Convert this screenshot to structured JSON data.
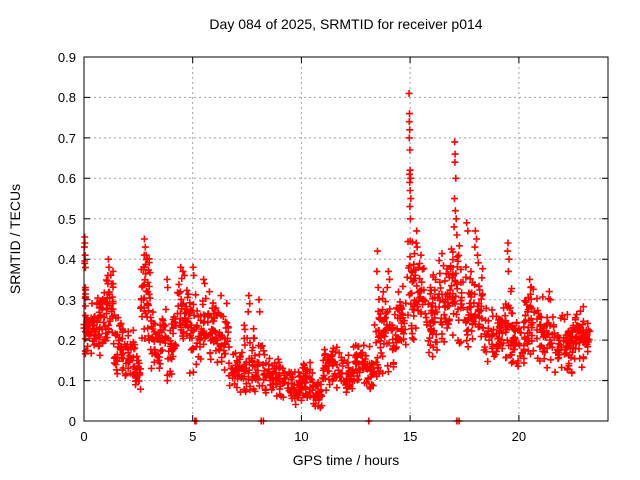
{
  "chart_data": {
    "type": "scatter",
    "title": "Day 084 of 2025, SRMTID for receiver p014",
    "xlabel": "GPS time / hours",
    "ylabel": "SRMTID / TECUs",
    "xlim": [
      0,
      24.1
    ],
    "ylim": [
      0,
      0.9
    ],
    "xticks": [
      0,
      5,
      10,
      15,
      20
    ],
    "xtick_labels": [
      "0",
      "5",
      "10",
      "15",
      "20"
    ],
    "yticks": [
      0,
      0.1,
      0.2,
      0.3,
      0.4,
      0.5,
      0.6,
      0.7,
      0.8,
      0.9
    ],
    "ytick_labels": [
      "0",
      "0.1",
      "0.2",
      "0.3",
      "0.4",
      "0.5",
      "0.6",
      "0.7",
      "0.8",
      "0.9"
    ],
    "grid": true,
    "grid_color": "#a0a0a0",
    "marker": {
      "shape": "plus",
      "color": "#ff0000",
      "size": 7
    },
    "series_name": "SRMTID",
    "notable_points": [
      [
        0.03,
        0.455
      ],
      [
        0.04,
        0.44
      ],
      [
        0.02,
        0.43
      ],
      [
        0.05,
        0.41
      ],
      [
        0.03,
        0.39
      ],
      [
        1.12,
        0.4
      ],
      [
        1.15,
        0.38
      ],
      [
        1.1,
        0.36
      ],
      [
        2.78,
        0.45
      ],
      [
        2.82,
        0.43
      ],
      [
        2.86,
        0.41
      ],
      [
        2.9,
        0.4
      ],
      [
        2.75,
        0.38
      ],
      [
        3.82,
        0.35
      ],
      [
        3.85,
        0.33
      ],
      [
        4.45,
        0.38
      ],
      [
        4.55,
        0.37
      ],
      [
        4.62,
        0.36
      ],
      [
        5.02,
        0.38
      ],
      [
        5.05,
        0.36
      ],
      [
        5.5,
        0.35
      ],
      [
        5.55,
        0.34
      ],
      [
        6.3,
        0.31
      ],
      [
        7.58,
        0.31
      ],
      [
        7.62,
        0.29
      ],
      [
        7.55,
        0.27
      ],
      [
        8.05,
        0.3
      ],
      [
        8.08,
        0.27
      ],
      [
        13.5,
        0.42
      ],
      [
        13.47,
        0.37
      ],
      [
        13.53,
        0.33
      ],
      [
        14.0,
        0.37
      ],
      [
        14.05,
        0.35
      ],
      [
        13.95,
        0.33
      ],
      [
        14.95,
        0.81
      ],
      [
        14.97,
        0.76
      ],
      [
        14.96,
        0.74
      ],
      [
        14.98,
        0.72
      ],
      [
        14.96,
        0.7
      ],
      [
        14.99,
        0.67
      ],
      [
        15.0,
        0.62
      ],
      [
        14.97,
        0.61
      ],
      [
        15.02,
        0.6
      ],
      [
        14.98,
        0.59
      ],
      [
        15.0,
        0.57
      ],
      [
        15.03,
        0.55
      ],
      [
        14.99,
        0.53
      ],
      [
        15.01,
        0.5
      ],
      [
        15.3,
        0.47
      ],
      [
        15.28,
        0.44
      ],
      [
        15.32,
        0.43
      ],
      [
        15.5,
        0.41
      ],
      [
        17.05,
        0.69
      ],
      [
        17.07,
        0.66
      ],
      [
        17.06,
        0.64
      ],
      [
        17.1,
        0.6
      ],
      [
        17.04,
        0.55
      ],
      [
        17.08,
        0.52
      ],
      [
        17.12,
        0.5
      ],
      [
        17.02,
        0.48
      ],
      [
        17.15,
        0.46
      ],
      [
        17.6,
        0.49
      ],
      [
        17.65,
        0.47
      ],
      [
        18.0,
        0.47
      ],
      [
        18.05,
        0.45
      ],
      [
        17.98,
        0.43
      ],
      [
        18.1,
        0.41
      ],
      [
        19.5,
        0.44
      ],
      [
        19.48,
        0.42
      ],
      [
        19.55,
        0.4
      ],
      [
        19.52,
        0.37
      ],
      [
        20.5,
        0.35
      ],
      [
        20.55,
        0.33
      ],
      [
        21.4,
        0.32
      ],
      [
        21.45,
        0.3
      ]
    ],
    "zero_points": [
      5.1,
      5.15,
      8.15,
      8.25,
      13.1,
      17.15,
      17.25
    ],
    "density_bands": [
      {
        "h0": 0.0,
        "h1": 0.08,
        "lo": 0.1,
        "hi": 0.46,
        "n": 14
      },
      {
        "h0": 0.05,
        "h1": 0.5,
        "lo": 0.16,
        "hi": 0.31,
        "n": 40
      },
      {
        "h0": 0.5,
        "h1": 1.0,
        "lo": 0.14,
        "hi": 0.33,
        "n": 45
      },
      {
        "h0": 1.0,
        "h1": 1.35,
        "lo": 0.18,
        "hi": 0.38,
        "n": 35
      },
      {
        "h0": 1.35,
        "h1": 1.8,
        "lo": 0.11,
        "hi": 0.28,
        "n": 40
      },
      {
        "h0": 1.8,
        "h1": 2.3,
        "lo": 0.09,
        "hi": 0.24,
        "n": 35
      },
      {
        "h0": 2.3,
        "h1": 2.6,
        "lo": 0.07,
        "hi": 0.2,
        "n": 25
      },
      {
        "h0": 2.6,
        "h1": 3.1,
        "lo": 0.16,
        "hi": 0.42,
        "n": 45
      },
      {
        "h0": 3.1,
        "h1": 3.65,
        "lo": 0.11,
        "hi": 0.3,
        "n": 40
      },
      {
        "h0": 3.65,
        "h1": 4.2,
        "lo": 0.08,
        "hi": 0.3,
        "n": 35
      },
      {
        "h0": 4.2,
        "h1": 4.85,
        "lo": 0.17,
        "hi": 0.36,
        "n": 45
      },
      {
        "h0": 4.85,
        "h1": 5.35,
        "lo": 0.08,
        "hi": 0.35,
        "n": 35
      },
      {
        "h0": 5.35,
        "h1": 6.05,
        "lo": 0.14,
        "hi": 0.33,
        "n": 50
      },
      {
        "h0": 6.05,
        "h1": 6.65,
        "lo": 0.11,
        "hi": 0.3,
        "n": 40
      },
      {
        "h0": 6.65,
        "h1": 7.35,
        "lo": 0.06,
        "hi": 0.19,
        "n": 40
      },
      {
        "h0": 7.35,
        "h1": 7.85,
        "lo": 0.04,
        "hi": 0.26,
        "n": 35
      },
      {
        "h0": 7.85,
        "h1": 8.35,
        "lo": 0.04,
        "hi": 0.22,
        "n": 30
      },
      {
        "h0": 8.35,
        "h1": 9.35,
        "lo": 0.05,
        "hi": 0.16,
        "n": 55
      },
      {
        "h0": 9.35,
        "h1": 10.05,
        "lo": 0.04,
        "hi": 0.13,
        "n": 45
      },
      {
        "h0": 10.05,
        "h1": 10.55,
        "lo": 0.05,
        "hi": 0.15,
        "n": 35
      },
      {
        "h0": 10.55,
        "h1": 10.95,
        "lo": 0.03,
        "hi": 0.1,
        "n": 30
      },
      {
        "h0": 10.95,
        "h1": 11.75,
        "lo": 0.07,
        "hi": 0.2,
        "n": 50
      },
      {
        "h0": 11.75,
        "h1": 12.35,
        "lo": 0.06,
        "hi": 0.17,
        "n": 40
      },
      {
        "h0": 12.35,
        "h1": 12.95,
        "lo": 0.08,
        "hi": 0.21,
        "n": 40
      },
      {
        "h0": 12.95,
        "h1": 13.35,
        "lo": 0.05,
        "hi": 0.19,
        "n": 25
      },
      {
        "h0": 13.35,
        "h1": 13.75,
        "lo": 0.1,
        "hi": 0.32,
        "n": 30
      },
      {
        "h0": 13.75,
        "h1": 14.35,
        "lo": 0.11,
        "hi": 0.33,
        "n": 40
      },
      {
        "h0": 14.35,
        "h1": 14.85,
        "lo": 0.15,
        "hi": 0.34,
        "n": 35
      },
      {
        "h0": 14.85,
        "h1": 15.2,
        "lo": 0.17,
        "hi": 0.48,
        "n": 30
      },
      {
        "h0": 15.2,
        "h1": 15.65,
        "lo": 0.19,
        "hi": 0.43,
        "n": 30
      },
      {
        "h0": 15.65,
        "h1": 16.25,
        "lo": 0.15,
        "hi": 0.38,
        "n": 45
      },
      {
        "h0": 16.25,
        "h1": 16.9,
        "lo": 0.16,
        "hi": 0.44,
        "n": 50
      },
      {
        "h0": 16.9,
        "h1": 17.3,
        "lo": 0.18,
        "hi": 0.45,
        "n": 30
      },
      {
        "h0": 17.3,
        "h1": 17.95,
        "lo": 0.14,
        "hi": 0.42,
        "n": 45
      },
      {
        "h0": 17.95,
        "h1": 18.35,
        "lo": 0.17,
        "hi": 0.4,
        "n": 30
      },
      {
        "h0": 18.35,
        "h1": 19.25,
        "lo": 0.12,
        "hi": 0.29,
        "n": 55
      },
      {
        "h0": 19.25,
        "h1": 19.7,
        "lo": 0.12,
        "hi": 0.33,
        "n": 30
      },
      {
        "h0": 19.7,
        "h1": 20.25,
        "lo": 0.12,
        "hi": 0.27,
        "n": 35
      },
      {
        "h0": 20.25,
        "h1": 20.85,
        "lo": 0.14,
        "hi": 0.34,
        "n": 40
      },
      {
        "h0": 20.85,
        "h1": 21.65,
        "lo": 0.12,
        "hi": 0.31,
        "n": 50
      },
      {
        "h0": 21.65,
        "h1": 22.45,
        "lo": 0.1,
        "hi": 0.27,
        "n": 50
      },
      {
        "h0": 22.45,
        "h1": 23.05,
        "lo": 0.13,
        "hi": 0.29,
        "n": 45
      },
      {
        "h0": 23.05,
        "h1": 23.3,
        "lo": 0.14,
        "hi": 0.26,
        "n": 15
      }
    ]
  }
}
